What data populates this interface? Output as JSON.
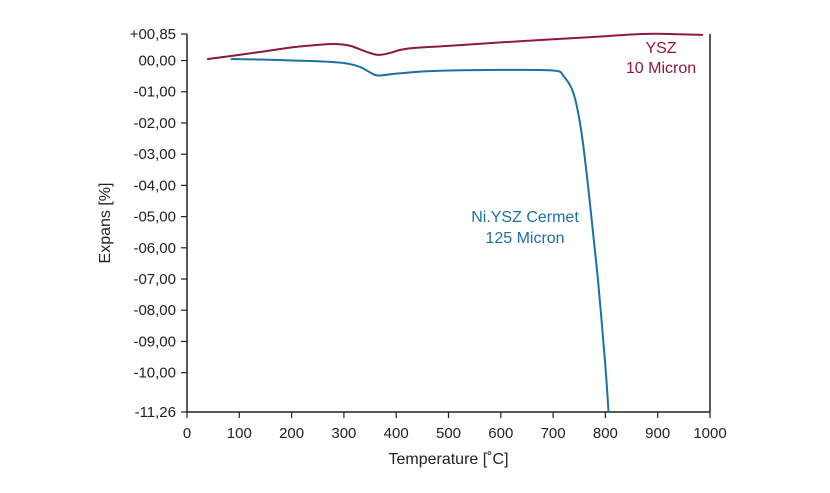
{
  "chart_data": {
    "type": "line",
    "title": "",
    "xlabel": "Temperature [˚C]",
    "ylabel": "Expans [%]",
    "xlim": [
      0,
      1000
    ],
    "ylim": [
      -11.26,
      0.85
    ],
    "x_ticks": [
      0,
      100,
      200,
      300,
      400,
      500,
      600,
      700,
      800,
      900,
      1000
    ],
    "x_tick_labels": [
      "0",
      "100",
      "200",
      "300",
      "400",
      "500",
      "600",
      "700",
      "800",
      "900",
      "1000"
    ],
    "y_ticks": [
      0.85,
      0,
      -1,
      -2,
      -3,
      -4,
      -5,
      -6,
      -7,
      -8,
      -9,
      -10,
      -11.26
    ],
    "y_tick_labels": [
      "+00,85",
      "00,00",
      "-01,00",
      "-02,00",
      "-03,00",
      "-04,00",
      "-05,00",
      "-06,00",
      "-07,00",
      "-08,00",
      "-09,00",
      "-10,00",
      "-11,26"
    ],
    "grid": false,
    "series": [
      {
        "name": "YSZ 10 Micron",
        "color": "#8b1a3c",
        "x": [
          40,
          100,
          150,
          200,
          250,
          280,
          310,
          340,
          365,
          390,
          420,
          500,
          600,
          700,
          800,
          870,
          920,
          985
        ],
        "y": [
          0.05,
          0.18,
          0.3,
          0.42,
          0.5,
          0.53,
          0.48,
          0.3,
          0.18,
          0.25,
          0.38,
          0.47,
          0.58,
          0.68,
          0.78,
          0.85,
          0.85,
          0.82
        ]
      },
      {
        "name": "Ni.YSZ Cermet 125 Micron",
        "color": "#1e6fa5",
        "x": [
          85,
          150,
          200,
          250,
          300,
          330,
          350,
          365,
          400,
          450,
          500,
          600,
          700,
          720,
          740,
          755,
          770,
          785,
          800,
          806
        ],
        "y": [
          0.05,
          0.03,
          0.0,
          -0.02,
          -0.08,
          -0.2,
          -0.38,
          -0.48,
          -0.42,
          -0.35,
          -0.32,
          -0.3,
          -0.32,
          -0.5,
          -1.1,
          -2.4,
          -4.5,
          -6.9,
          -9.8,
          -11.26
        ]
      }
    ],
    "annotations": [
      {
        "line1": "YSZ",
        "line2": "10 Micron",
        "color": "#8b1a3c"
      },
      {
        "line1": "Ni.YSZ Cermet",
        "line2": "125 Micron",
        "color": "#1e6fa5"
      }
    ]
  }
}
